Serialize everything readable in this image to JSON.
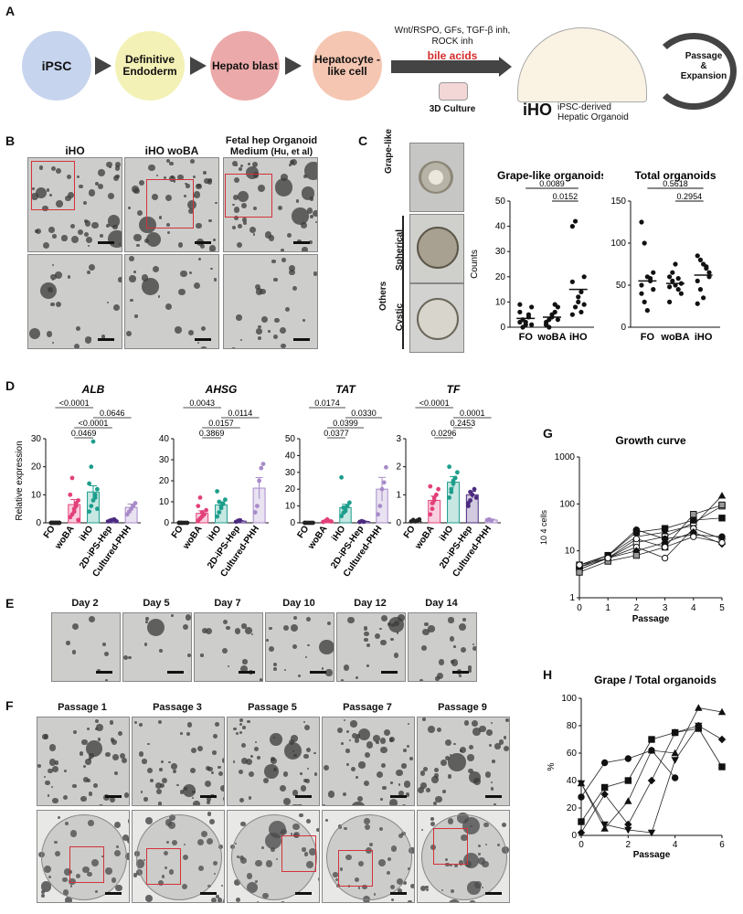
{
  "panelA": {
    "label": "A",
    "cells": [
      "iPSC",
      "Definitive Endoderm",
      "Hepato blast",
      "Hepatocyte -like cell"
    ],
    "media": "Wnt/RSPO, GFs, TGF-β inh, ROCK inh",
    "bile": "bile acids",
    "culture": "3D Culture",
    "iho": "iHO",
    "iho_desc1": "iPSC-derived",
    "iho_desc2": "Hepatic Organoid",
    "passage1": "Passage",
    "passage2": "&",
    "passage3": "Expansion"
  },
  "panelB": {
    "label": "B",
    "col1": "iHO",
    "col2": "iHO woBA",
    "col3a": "Fetal hep Organoid",
    "col3b": "Medium",
    "col3c": "(Hu, et al)"
  },
  "panelC": {
    "label": "C",
    "grape": "Grape-like",
    "spherical": "Spherical",
    "cystic": "Cystic",
    "others": "Others"
  },
  "panelD": {
    "label": "D"
  },
  "panelE": {
    "label": "E",
    "days": [
      "Day 2",
      "Day 5",
      "Day 7",
      "Day 10",
      "Day 12",
      "Day 14"
    ]
  },
  "panelF": {
    "label": "F",
    "passages": [
      "Passage 1",
      "Passage 3",
      "Passage 5",
      "Passage 7",
      "Passage 9"
    ]
  },
  "panelG": {
    "label": "G"
  },
  "panelH": {
    "label": "H"
  },
  "chart_data": [
    {
      "id": "C1",
      "type": "scatter",
      "title": "Grape-like organoids",
      "ylabel": "Counts",
      "categories": [
        "FO",
        "woBA",
        "iHO"
      ],
      "ylim": [
        0,
        50
      ],
      "yticks": [
        0,
        10,
        20,
        30,
        40,
        50
      ],
      "points": [
        [
          2,
          3,
          1,
          5,
          8,
          9,
          0,
          2,
          4,
          1,
          6
        ],
        [
          1,
          3,
          5,
          6,
          8,
          2,
          0,
          4,
          9,
          3,
          1
        ],
        [
          5,
          8,
          10,
          14,
          20,
          40,
          42,
          12,
          6,
          9,
          18
        ]
      ],
      "means": [
        3.5,
        4,
        15
      ],
      "comparisons": [
        {
          "label": "0.0089",
          "from": 0,
          "to": 2
        },
        {
          "label": "0.0152",
          "from": 1,
          "to": 2
        }
      ]
    },
    {
      "id": "C2",
      "type": "scatter",
      "title": "Total organoids",
      "categories": [
        "FO",
        "woBA",
        "iHO"
      ],
      "ylim": [
        0,
        150
      ],
      "yticks": [
        0,
        50,
        100,
        150
      ],
      "points": [
        [
          125,
          100,
          60,
          55,
          45,
          40,
          30,
          20,
          58,
          65,
          50
        ],
        [
          60,
          55,
          50,
          45,
          40,
          30,
          65,
          75,
          58,
          52,
          48
        ],
        [
          85,
          80,
          75,
          70,
          60,
          55,
          45,
          35,
          72,
          65,
          28
        ]
      ],
      "means": [
        55,
        52,
        62
      ],
      "comparisons": [
        {
          "label": "0.5618",
          "from": 0,
          "to": 2
        },
        {
          "label": "0.2954",
          "from": 1,
          "to": 2
        }
      ]
    },
    {
      "id": "D1",
      "type": "bar",
      "title": "ALB",
      "ylabel": "Relative expression",
      "categories": [
        "FO",
        "woBA",
        "iHO",
        "2D-iPS-Hep",
        "Cultured-PHH"
      ],
      "values": [
        0.2,
        6.5,
        11,
        0.8,
        5.5
      ],
      "errors": [
        0.1,
        1.8,
        2.2,
        0.2,
        1.2
      ],
      "ylim": [
        0,
        30
      ],
      "yticks": [
        0,
        10,
        20,
        30
      ],
      "colors": [
        "#222222",
        "#e2407a",
        "#1d9e8c",
        "#4b2a7f",
        "#a88bc9"
      ],
      "points": [
        [
          0,
          0,
          0,
          0,
          0,
          0,
          0,
          0,
          0,
          0
        ],
        [
          2,
          3,
          5,
          6,
          8,
          10,
          16,
          4,
          7,
          1
        ],
        [
          4,
          6,
          8,
          10,
          12,
          14,
          20,
          29,
          9,
          5
        ],
        [
          0.5,
          0.8,
          1,
          1.2,
          0.6
        ],
        [
          3,
          4,
          5,
          6,
          7
        ]
      ],
      "comparisons": [
        {
          "label": "<0.0001",
          "from": 0,
          "to": 2
        },
        {
          "label": "0.0646",
          "from": 2,
          "to": 4
        },
        {
          "label": "<0.0001",
          "from": 1,
          "to": 3
        },
        {
          "label": "0.0469",
          "from": 1,
          "to": 2
        }
      ]
    },
    {
      "id": "D2",
      "type": "bar",
      "title": "AHSG",
      "categories": [
        "FO",
        "woBA",
        "iHO",
        "2D-iPS-Hep",
        "Cultured-PHH"
      ],
      "values": [
        0.3,
        4.5,
        8.5,
        0.8,
        16.5
      ],
      "errors": [
        0.1,
        1.2,
        1.5,
        0.2,
        5
      ],
      "ylim": [
        0,
        40
      ],
      "yticks": [
        0,
        10,
        20,
        30,
        40
      ],
      "colors": [
        "#222222",
        "#e2407a",
        "#1d9e8c",
        "#4b2a7f",
        "#a88bc9"
      ],
      "points": [
        [
          0,
          0,
          0,
          0,
          0,
          0,
          0
        ],
        [
          1,
          2,
          3,
          4,
          6,
          8,
          12,
          5
        ],
        [
          3,
          5,
          7,
          9,
          11,
          15,
          10,
          8
        ],
        [
          0.5,
          1,
          1.2
        ],
        [
          5,
          8,
          20,
          26,
          28
        ]
      ],
      "comparisons": [
        {
          "label": "0.0043",
          "from": 0,
          "to": 2
        },
        {
          "label": "0.0114",
          "from": 2,
          "to": 4
        },
        {
          "label": "0.0157",
          "from": 1,
          "to": 3
        },
        {
          "label": "0.3869",
          "from": 1,
          "to": 2
        }
      ]
    },
    {
      "id": "D3",
      "type": "bar",
      "title": "TAT",
      "categories": [
        "FO",
        "woBA",
        "iHO",
        "2D-iPS-Hep",
        "Cultured-PHH"
      ],
      "values": [
        0.3,
        1,
        9,
        0.8,
        20
      ],
      "errors": [
        0.1,
        0.4,
        2,
        0.2,
        7
      ],
      "ylim": [
        0,
        50
      ],
      "yticks": [
        0,
        10,
        20,
        30,
        40,
        50
      ],
      "colors": [
        "#222222",
        "#e2407a",
        "#1d9e8c",
        "#4b2a7f",
        "#a88bc9"
      ],
      "points": [
        [
          0,
          0,
          0,
          0,
          0,
          0
        ],
        [
          0.5,
          1,
          2,
          1,
          0.8
        ],
        [
          4,
          6,
          8,
          10,
          12,
          27,
          9,
          7
        ],
        [
          0.5,
          1,
          0.6
        ],
        [
          5,
          10,
          20,
          24,
          33
        ]
      ],
      "comparisons": [
        {
          "label": "0.0174",
          "from": 0,
          "to": 2
        },
        {
          "label": "0.0330",
          "from": 2,
          "to": 4
        },
        {
          "label": "0.0399",
          "from": 1,
          "to": 3
        },
        {
          "label": "0.0377",
          "from": 1,
          "to": 2
        }
      ]
    },
    {
      "id": "D4",
      "type": "bar",
      "title": "TF",
      "categories": [
        "FO",
        "woBA",
        "iHO",
        "2D-iPS-Hep",
        "Cultured-PHH"
      ],
      "values": [
        0.05,
        0.8,
        1.45,
        1.0,
        0.1
      ],
      "errors": [
        0.02,
        0.15,
        0.2,
        0.12,
        0.03
      ],
      "ylim": [
        0,
        3
      ],
      "yticks": [
        0,
        1,
        2,
        3
      ],
      "colors": [
        "#222222",
        "#e2407a",
        "#1d9e8c",
        "#4b2a7f",
        "#a88bc9"
      ],
      "points": [
        [
          0.05,
          0.1,
          0.05,
          0.08,
          0.12
        ],
        [
          0.3,
          0.5,
          0.8,
          1,
          1.2,
          1.3,
          0.7,
          0.9
        ],
        [
          0.9,
          1.2,
          1.4,
          1.6,
          1.8,
          2.0,
          1.1,
          1.5
        ],
        [
          0.6,
          0.8,
          1,
          1.2,
          0.9,
          0.7,
          1.1
        ],
        [
          0.1,
          0.12,
          0.08
        ]
      ],
      "comparisons": [
        {
          "label": "<0.0001",
          "from": 0,
          "to": 2
        },
        {
          "label": "0.0001",
          "from": 2,
          "to": 4
        },
        {
          "label": "0.2453",
          "from": 2,
          "to": 3
        },
        {
          "label": "0.0296",
          "from": 1,
          "to": 2
        }
      ]
    },
    {
      "id": "G",
      "type": "line",
      "title": "Growth curve",
      "xlabel": "Passage",
      "ylabel": "10 4 cells",
      "x": [
        0,
        1,
        2,
        3,
        4,
        5
      ],
      "yscale": "log",
      "ylim": [
        1,
        1000
      ],
      "yticks": [
        1,
        10,
        100,
        1000
      ],
      "series": [
        {
          "values": [
            5,
            8,
            20,
            25,
            35,
            150
          ],
          "marker": "triangle"
        },
        {
          "values": [
            4.5,
            7,
            15,
            20,
            40,
            90
          ],
          "marker": "square-open"
        },
        {
          "values": [
            4,
            7,
            12,
            7,
            30,
            18
          ],
          "marker": "circle-open"
        },
        {
          "values": [
            5,
            8,
            25,
            30,
            45,
            50
          ],
          "marker": "square"
        },
        {
          "values": [
            4,
            7,
            10,
            15,
            25,
            14
          ],
          "marker": "diamond"
        },
        {
          "values": [
            4.5,
            8,
            28,
            18,
            22,
            20
          ],
          "marker": "circle"
        },
        {
          "values": [
            3.5,
            6,
            8,
            12,
            60,
            95
          ],
          "marker": "square-gray"
        },
        {
          "values": [
            5,
            7,
            18,
            12,
            20,
            15
          ],
          "marker": "circle-open"
        }
      ]
    },
    {
      "id": "H",
      "type": "line",
      "title": "Grape / Total organoids",
      "xlabel": "Passage",
      "ylabel": "%",
      "x": [
        0,
        1,
        2,
        3,
        4,
        5,
        6
      ],
      "ylim": [
        0,
        100
      ],
      "yticks": [
        0,
        20,
        40,
        60,
        80,
        100
      ],
      "xticks": [
        0,
        2,
        4,
        6
      ],
      "series": [
        {
          "x": [
            0,
            1,
            2,
            3,
            4
          ],
          "values": [
            28,
            53,
            56,
            62,
            42
          ],
          "marker": "circle"
        },
        {
          "x": [
            0,
            1,
            2,
            3,
            4,
            5,
            6
          ],
          "values": [
            10,
            35,
            40,
            70,
            75,
            78,
            50
          ],
          "marker": "square"
        },
        {
          "x": [
            0,
            1,
            2,
            3,
            4,
            5,
            6
          ],
          "values": [
            38,
            5,
            25,
            62,
            60,
            93,
            90
          ],
          "marker": "triangle"
        },
        {
          "x": [
            0,
            1,
            2,
            3,
            4,
            5,
            6
          ],
          "values": [
            2,
            30,
            8,
            40,
            75,
            80,
            70
          ],
          "marker": "diamond"
        },
        {
          "x": [
            0,
            1,
            2,
            3,
            4,
            5
          ],
          "values": [
            38,
            8,
            4,
            2,
            55,
            80
          ],
          "marker": "triangle-down"
        }
      ]
    }
  ]
}
